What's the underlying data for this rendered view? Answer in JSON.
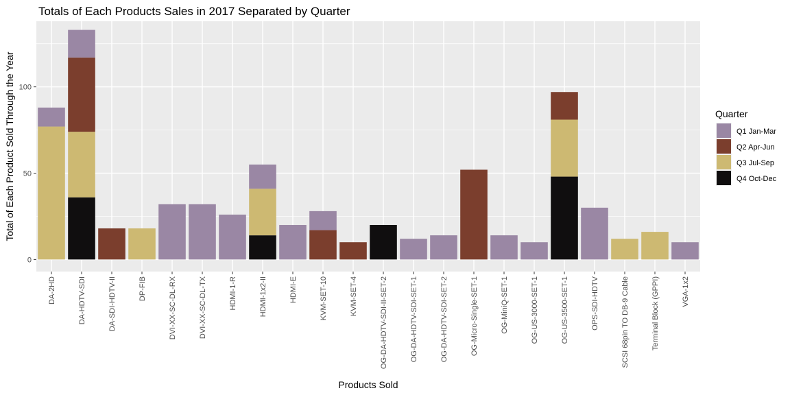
{
  "chart_data": {
    "type": "bar",
    "stacked": true,
    "title": "Totals of Each Products Sales in 2017 Separated by Quarter",
    "xlabel": "Products Sold",
    "ylabel": "Total of Each Product Sold Through the Year",
    "ylim": [
      -7,
      138
    ],
    "yticks": [
      0,
      50,
      100
    ],
    "grid": true,
    "legend_position": "right",
    "legend_title": "Quarter",
    "categories": [
      "DA-2HD",
      "DA-HDTV-SDI",
      "DA-SDI-HDTV-II",
      "DP-FIB",
      "DVI-XX-SC-DL-RX",
      "DVI-XX-SC-DL-TX",
      "HDMI-1-R",
      "HDMI-1x2-II",
      "HDMI-E",
      "KVM-SET-10",
      "KVM-SET-4",
      "OG-DA-HDTV-SDI-II-SET-2",
      "OG-DA-HDTV-SDI-SET-1",
      "OG-DA-HDTV-SDI-SET-2",
      "OG-Micro-Single-SET-1",
      "OG-MiniQ-SET-1",
      "OG-US-3000-SET-1",
      "OG-US-3500-SET-1",
      "OPS-SDI-HDTV",
      "SCSI 68pin TO DB-9 Cable",
      "Terminal Block (GPPI)",
      "VGA-1x2"
    ],
    "series": [
      {
        "name": "Q4 Oct-Dec",
        "color": "#100e0f",
        "values": [
          0,
          36,
          0,
          0,
          0,
          0,
          0,
          14,
          0,
          0,
          0,
          20,
          0,
          0,
          0,
          0,
          0,
          48,
          0,
          0,
          0,
          0
        ]
      },
      {
        "name": "Q3 Jul-Sep",
        "color": "#cdb972",
        "values": [
          77,
          38,
          0,
          18,
          0,
          0,
          0,
          27,
          0,
          0,
          0,
          0,
          0,
          0,
          0,
          0,
          0,
          33,
          0,
          12,
          16,
          0
        ]
      },
      {
        "name": "Q2 Apr-Jun",
        "color": "#7b3e2d",
        "values": [
          0,
          43,
          18,
          0,
          0,
          0,
          0,
          0,
          0,
          17,
          10,
          0,
          0,
          0,
          52,
          0,
          0,
          16,
          0,
          0,
          0,
          0
        ]
      },
      {
        "name": "Q1 Jan-Mar",
        "color": "#9a87a4",
        "values": [
          11,
          16,
          0,
          0,
          32,
          32,
          26,
          14,
          20,
          11,
          0,
          0,
          12,
          14,
          0,
          14,
          10,
          0,
          30,
          0,
          0,
          10
        ]
      }
    ],
    "legend_order": [
      "Q1 Jan-Mar",
      "Q2 Apr-Jun",
      "Q3 Jul-Sep",
      "Q4 Oct-Dec"
    ]
  }
}
